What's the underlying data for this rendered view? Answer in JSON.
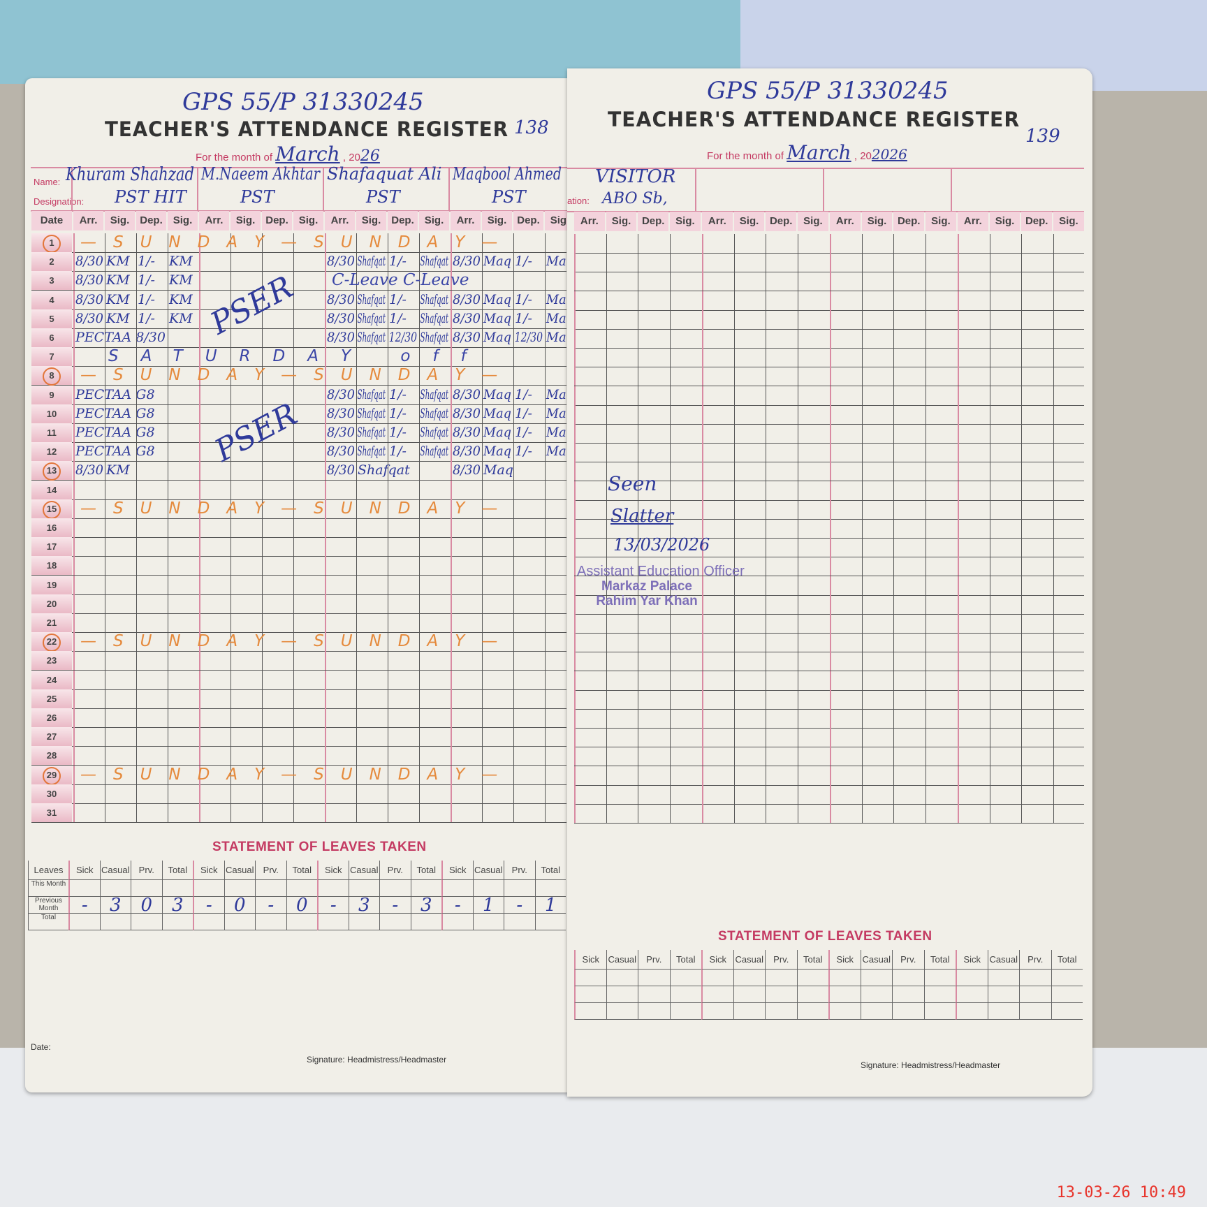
{
  "left_page": {
    "school_code": "GPS 55/P 31330245",
    "title": "TEACHER'S ATTENDANCE REGISTER",
    "page_number": "138",
    "month_label": "For the month of",
    "month": "March",
    "year_prefix": "20",
    "year": "26",
    "name_label": "Name:",
    "designation_label": "Designation:",
    "teachers": [
      {
        "name": "Khuram Shahzad",
        "designation": "PST HIT"
      },
      {
        "name": "M.Naeem Akhtar",
        "designation": "PST"
      },
      {
        "name": "Shafaquat Ali",
        "designation": "PST"
      },
      {
        "name": "Maqbool Ahmed",
        "designation": "PST"
      }
    ],
    "date_header": "Date",
    "column_headers": [
      "Arr.",
      "Sig.",
      "Dep.",
      "Sig."
    ],
    "rows": [
      {
        "date": "1",
        "circled": true,
        "banner": "—SUNDAY—SUNDAY—"
      },
      {
        "date": "2",
        "entries": [
          [
            "8/30",
            "KM",
            "1/-",
            "KM"
          ],
          [],
          [
            "8/30",
            "Shafqat",
            "1/-",
            "Shafqat"
          ],
          [
            "8/30",
            "Maq",
            "1/-",
            "Maq"
          ]
        ]
      },
      {
        "date": "3",
        "entries": [
          [
            "8/30",
            "KM",
            "1/-",
            "KM"
          ],
          [],
          [],
          []
        ],
        "leave": "C-Leave   C-Leave"
      },
      {
        "date": "4",
        "entries": [
          [
            "8/30",
            "KM",
            "1/-",
            "KM"
          ],
          [],
          [
            "8/30",
            "Shafqat",
            "1/-",
            "Shafqat"
          ],
          [
            "8/30",
            "Maq",
            "1/-",
            "Maq"
          ]
        ]
      },
      {
        "date": "5",
        "entries": [
          [
            "8/30",
            "KM",
            "1/-",
            "KM"
          ],
          [],
          [
            "8/30",
            "Shafqat",
            "1/-",
            "Shafqat"
          ],
          [
            "8/30",
            "Maq",
            "1/-",
            "Maq"
          ]
        ]
      },
      {
        "date": "6",
        "entries": [
          [
            "PECTAA 8/30",
            "",
            "",
            ""
          ],
          [],
          [
            "8/30",
            "Shafqat",
            "12/30",
            "Shafqat"
          ],
          [
            "8/30",
            "Maq",
            "12/30",
            "Maq"
          ]
        ]
      },
      {
        "date": "7",
        "banner": "SATURDAY off"
      },
      {
        "date": "8",
        "circled": true,
        "banner": "—SUNDAY—SUNDAY—"
      },
      {
        "date": "9",
        "entries": [
          [
            "PECTAA G8",
            "",
            "",
            ""
          ],
          [],
          [
            "8/30",
            "Shafqat",
            "1/-",
            "Shafqat"
          ],
          [
            "8/30",
            "Maq",
            "1/-",
            "Maq"
          ]
        ]
      },
      {
        "date": "10",
        "entries": [
          [
            "PECTAA G8",
            "",
            "",
            ""
          ],
          [],
          [
            "8/30",
            "Shafqat",
            "1/-",
            "Shafqat"
          ],
          [
            "8/30",
            "Maq",
            "1/-",
            "Maq"
          ]
        ]
      },
      {
        "date": "11",
        "entries": [
          [
            "PECTAA G8",
            "",
            "",
            ""
          ],
          [],
          [
            "8/30",
            "Shafqat",
            "1/-",
            "Shafqat"
          ],
          [
            "8/30",
            "Maq",
            "1/-",
            "Maq"
          ]
        ]
      },
      {
        "date": "12",
        "entries": [
          [
            "PECTAA G8",
            "",
            "",
            ""
          ],
          [],
          [
            "8/30",
            "Shafqat",
            "1/-",
            "Shafqat"
          ],
          [
            "8/30",
            "Maq",
            "1/-",
            "Maq"
          ]
        ]
      },
      {
        "date": "13",
        "circled": true,
        "entries": [
          [
            "8/30",
            "KM",
            "",
            ""
          ],
          [],
          [
            "8/30",
            "Shafqat",
            "",
            ""
          ],
          [
            "8/30",
            "Maq",
            "",
            ""
          ]
        ]
      },
      {
        "date": "14"
      },
      {
        "date": "15",
        "circled": true,
        "banner": "—SUNDAY—SUNDAY—"
      },
      {
        "date": "16"
      },
      {
        "date": "17"
      },
      {
        "date": "18"
      },
      {
        "date": "19"
      },
      {
        "date": "20"
      },
      {
        "date": "21"
      },
      {
        "date": "22",
        "circled": true,
        "banner": "—SUNDAY—SUNDAY—"
      },
      {
        "date": "23"
      },
      {
        "date": "24"
      },
      {
        "date": "25"
      },
      {
        "date": "26"
      },
      {
        "date": "27"
      },
      {
        "date": "28"
      },
      {
        "date": "29",
        "circled": true,
        "banner": "—SUNDAY—SUNDAY—"
      },
      {
        "date": "30"
      },
      {
        "date": "31"
      }
    ],
    "annotations": [
      "PSER",
      "PSER"
    ],
    "leaves": {
      "title": "STATEMENT OF LEAVES TAKEN",
      "corner_label": "Leaves",
      "row_labels": [
        "This Month",
        "Previous Month",
        "Total"
      ],
      "sub_headers": [
        "Sick",
        "Casual",
        "Prv.",
        "Total"
      ],
      "previous_month": [
        [
          "-",
          "3",
          "0",
          "3"
        ],
        [
          "-",
          "0",
          "-",
          "0"
        ],
        [
          "-",
          "3",
          "-",
          "3"
        ],
        [
          "-",
          "1",
          "-",
          "1"
        ]
      ]
    },
    "date_footer_label": "Date:",
    "signature_label": "Signature: Headmistress/Headmaster"
  },
  "right_page": {
    "school_code": "GPS 55/P 31330245",
    "title": "TEACHER'S ATTENDANCE REGISTER",
    "page_number": "139",
    "month_label": "For the month of",
    "month": "March",
    "year_prefix": "20",
    "year": "2026",
    "designation_label": "ation:",
    "visitor_name": "VISITOR",
    "visitor_designation": "ABO Sb,",
    "column_headers": [
      "Arr.",
      "Sig.",
      "Dep.",
      "Sig."
    ],
    "remark": "Seen",
    "signature": "Slatter",
    "remark_date": "13/03/2026",
    "stamp": [
      "Assistant Education Officer",
      "Markaz Palace",
      "Rahim Yar Khan"
    ],
    "leaves": {
      "title": "STATEMENT OF LEAVES TAKEN",
      "sub_headers": [
        "Sick",
        "Casual",
        "Prv.",
        "Total"
      ]
    },
    "signature_label": "Signature: Headmistress/Headmaster"
  },
  "camera_timestamp": "13-03-26 10:49",
  "colors": {
    "ink": "#2f3a9a",
    "print_pink": "#c43a62",
    "sunday_marker": "#e58a3c",
    "stamp": "#7d6fb8"
  }
}
